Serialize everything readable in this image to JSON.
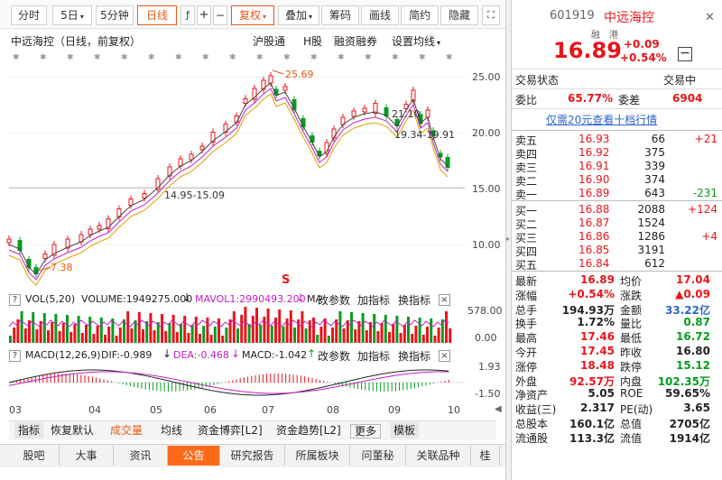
{
  "toolbar": {
    "items": [
      {
        "label": "分时",
        "caret": false
      },
      {
        "label": "5日",
        "caret": true
      },
      {
        "label": "5分钟",
        "caret": false
      },
      {
        "label": "日线",
        "caret": false,
        "active": true
      },
      {
        "label": "复权",
        "caret": true,
        "active": true
      },
      {
        "label": "叠加",
        "caret": true
      },
      {
        "label": "筹码",
        "caret": false
      },
      {
        "label": "画线",
        "caret": false
      },
      {
        "label": "简约",
        "caret": false
      },
      {
        "label": "隐藏",
        "caret": false
      }
    ],
    "pen_icon": "pen-icon",
    "cross_icon": "crosshair-icon",
    "minus_icon": "minus-icon",
    "expand_icon": "expand-icon"
  },
  "chart_header": {
    "title": "中远海控（日线，前复权）",
    "links": [
      "沪股通",
      "H股",
      "融资融券"
    ],
    "setting": "设置均线"
  },
  "price_axis": [
    "25.00",
    "20.00",
    "15.00",
    "10.00"
  ],
  "annotations": {
    "high_label": "25.69",
    "low_label": "7.38",
    "range_label": "14.95-15.09",
    "range_label2": "21.10",
    "range_label3": "19.34-19.91",
    "s_marker": "S"
  },
  "vol": {
    "label": "VOL(5,20)",
    "volume": "VOLUME:1949275.000",
    "mavol1": "MAVOL1:2990493.200",
    "ma_cut": "MA",
    "param": "改参数",
    "add": "加指标",
    "switch": "换指标",
    "axis": [
      "578.00",
      "0.00"
    ]
  },
  "macd": {
    "label": "MACD(12,26,9)",
    "dif": "DIF:-0.989",
    "dea": "DEA:-0.468",
    "macd": "MACD:-1.042",
    "param": "改参数",
    "add": "加指标",
    "switch": "换指标",
    "axis": [
      "1.93",
      "-1.50"
    ]
  },
  "months": [
    "03",
    "04",
    "05",
    "06",
    "07",
    "08",
    "09",
    "10"
  ],
  "indicator_tabs": [
    "指标",
    "恢复默认",
    "成交量",
    "均线",
    "资金博弈[L2]",
    "资金趋势[L2]",
    "更多",
    "模板"
  ],
  "bottom_tabs": [
    "股吧",
    "大事",
    "资讯",
    "公告",
    "研究报告",
    "所属板块",
    "问董秘",
    "关联品种",
    "桂"
  ],
  "quote": {
    "code": "601919",
    "name": "中远海控",
    "tag1": "融",
    "tag2": "港",
    "price": "16.89",
    "change": "+0.09",
    "change_pct": "+0.54%",
    "status_label": "交易状态",
    "status_value": "交易中",
    "webi_label": "委比",
    "webi_value": "65.77%",
    "weicha_label": "委差",
    "weicha_value": "6904",
    "promo": "仅需20元查看十档行情"
  },
  "sell": [
    {
      "name": "卖五",
      "price": "16.93",
      "vol": "66",
      "delta": "+21"
    },
    {
      "name": "卖四",
      "price": "16.92",
      "vol": "375",
      "delta": ""
    },
    {
      "name": "卖三",
      "price": "16.91",
      "vol": "339",
      "delta": ""
    },
    {
      "name": "卖二",
      "price": "16.90",
      "vol": "374",
      "delta": ""
    },
    {
      "name": "卖一",
      "price": "16.89",
      "vol": "643",
      "delta": "-231"
    }
  ],
  "buy": [
    {
      "name": "买一",
      "price": "16.88",
      "vol": "2088",
      "delta": "+124"
    },
    {
      "name": "买二",
      "price": "16.87",
      "vol": "1524",
      "delta": ""
    },
    {
      "name": "买三",
      "price": "16.86",
      "vol": "1286",
      "delta": "+4"
    },
    {
      "name": "买四",
      "price": "16.85",
      "vol": "3191",
      "delta": ""
    },
    {
      "name": "买五",
      "price": "16.84",
      "vol": "612",
      "delta": ""
    }
  ],
  "stats": [
    {
      "l1": "最新",
      "v1": "16.89",
      "c1": "red",
      "l2": "均价",
      "v2": "17.04",
      "c2": "red"
    },
    {
      "l1": "涨幅",
      "v1": "+0.54%",
      "c1": "red",
      "l2": "涨跌",
      "v2": "▲0.09",
      "c2": "red"
    },
    {
      "l1": "总手",
      "v1": "194.93万",
      "c1": "",
      "l2": "金额",
      "v2": "33.22亿",
      "c2": "blue"
    },
    {
      "l1": "换手",
      "v1": "1.72%",
      "c1": "",
      "l2": "量比",
      "v2": "0.87",
      "c2": "green"
    },
    {
      "l1": "最高",
      "v1": "17.46",
      "c1": "red",
      "l2": "最低",
      "v2": "16.72",
      "c2": "green"
    },
    {
      "l1": "今开",
      "v1": "17.45",
      "c1": "red",
      "l2": "昨收",
      "v2": "16.80",
      "c2": ""
    },
    {
      "l1": "涨停",
      "v1": "18.48",
      "c1": "red",
      "l2": "跌停",
      "v2": "15.12",
      "c2": "green"
    },
    {
      "l1": "外盘",
      "v1": "92.57万",
      "c1": "red",
      "l2": "内盘",
      "v2": "102.35万",
      "c2": "green"
    },
    {
      "l1": "净资产",
      "v1": "5.05",
      "c1": "",
      "l2": "ROE",
      "v2": "59.65%",
      "c2": ""
    },
    {
      "l1": "收益(三)",
      "v1": "2.317",
      "c1": "",
      "l2": "PE(动)",
      "v2": "3.65",
      "c2": ""
    },
    {
      "l1": "总股本",
      "v1": "160.1亿",
      "c1": "",
      "l2": "总值",
      "v2": "2705亿",
      "c2": ""
    },
    {
      "l1": "流通股",
      "v1": "113.3亿",
      "c1": "",
      "l2": "流值",
      "v2": "1914亿",
      "c2": ""
    }
  ]
}
